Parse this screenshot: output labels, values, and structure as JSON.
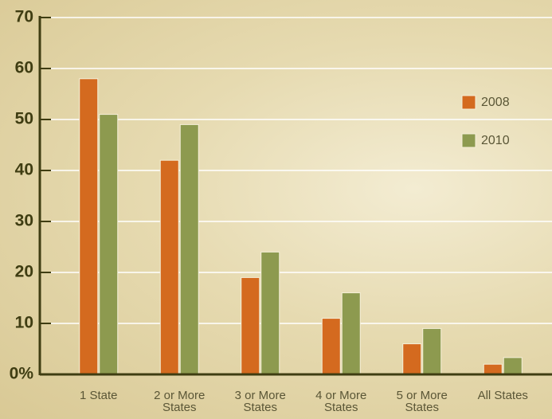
{
  "chart_data": {
    "type": "bar",
    "categories": [
      "1 State",
      "2 or More States",
      "3 or More States",
      "4 or More States",
      "5 or More States",
      "All States"
    ],
    "series": [
      {
        "name": "2008",
        "color": "#d46a1f",
        "values": [
          58,
          42,
          19,
          11,
          6,
          2
        ]
      },
      {
        "name": "2010",
        "color": "#8d9a4f",
        "values": [
          51,
          49,
          24,
          16,
          9,
          3.3
        ]
      }
    ],
    "ylim": [
      0,
      70
    ],
    "yticks": [
      {
        "value": 0,
        "label": "0%"
      },
      10,
      20,
      30,
      40,
      50,
      60,
      70
    ],
    "grid": true,
    "legend": "right"
  }
}
